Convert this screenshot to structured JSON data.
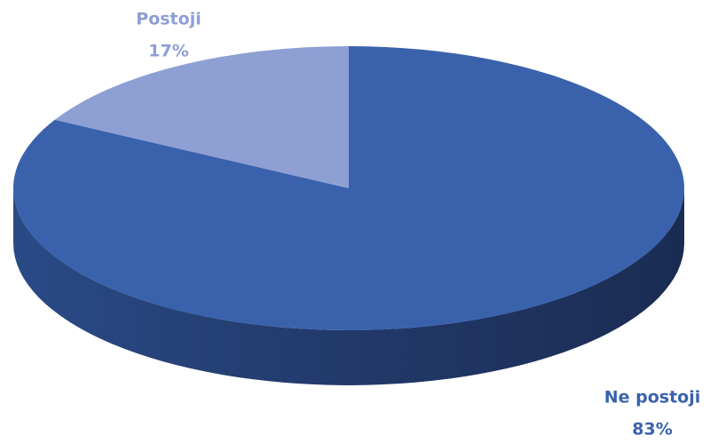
{
  "chart_data": {
    "type": "pie",
    "categories": [
      "Ne postoji",
      "Postoji"
    ],
    "values": [
      83,
      17
    ],
    "value_labels": [
      "83%",
      "17%"
    ],
    "colors": [
      "#3A62AC",
      "#8E9FD4"
    ]
  }
}
